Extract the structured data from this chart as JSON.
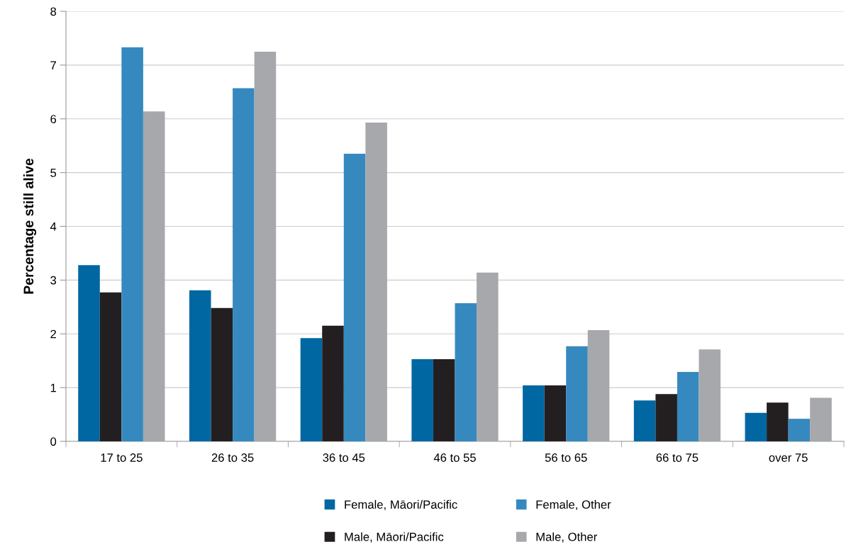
{
  "chart_data": {
    "type": "bar",
    "ylabel": "Percentage still alive",
    "categories": [
      "17 to 25",
      "26 to 35",
      "36 to 45",
      "46 to 55",
      "56 to 65",
      "66 to 75",
      "over 75"
    ],
    "series": [
      {
        "name": "Female, Māori/Pacific",
        "color": "#0067a3",
        "values": [
          3.28,
          2.81,
          1.92,
          1.53,
          1.04,
          0.76,
          0.53
        ]
      },
      {
        "name": "Male, Māori/Pacific",
        "color": "#231f20",
        "values": [
          2.77,
          2.48,
          2.15,
          1.53,
          1.04,
          0.88,
          0.72
        ]
      },
      {
        "name": "Female, Other",
        "color": "#3689bf",
        "values": [
          7.33,
          6.57,
          5.35,
          2.57,
          1.77,
          1.29,
          0.42
        ]
      },
      {
        "name": "Male, Other",
        "color": "#a7a8ab",
        "values": [
          6.14,
          7.25,
          5.93,
          3.14,
          2.07,
          1.71,
          0.81
        ]
      }
    ],
    "ylim": [
      0,
      8
    ],
    "yticks": [
      0,
      1,
      2,
      3,
      4,
      5,
      6,
      7,
      8
    ],
    "grid": "y",
    "legend": "bottom"
  }
}
